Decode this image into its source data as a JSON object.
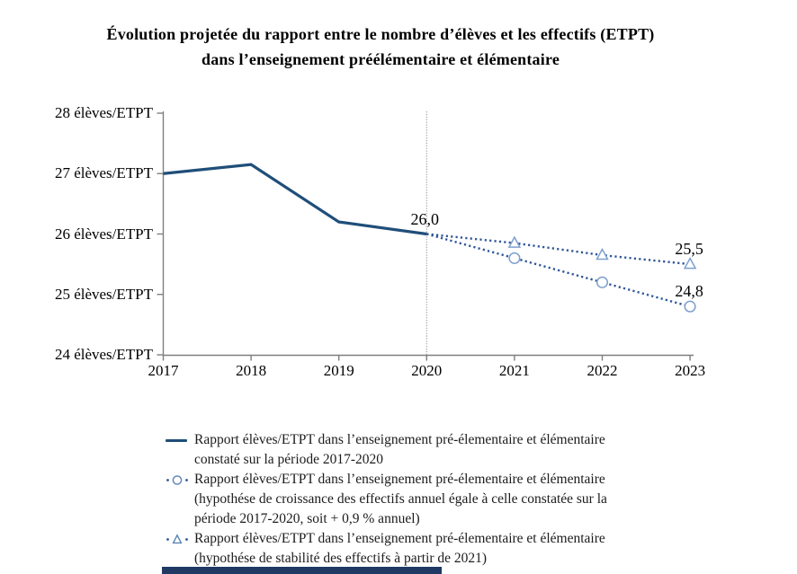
{
  "title": {
    "line1": "Évolution projetée du rapport entre le nombre d’élèves et les effectifs (ETPT)",
    "line2": "dans l’enseignement préélémentaire et élémentaire"
  },
  "chart_data": {
    "type": "line",
    "x_years": [
      2017,
      2018,
      2019,
      2020,
      2021,
      2022,
      2023
    ],
    "ylim": [
      24,
      28
    ],
    "ylabels": [
      "28 élèves/ETPT",
      "27 élèves/ETPT",
      "26 élèves/ETPT",
      "25 élèves/ETPT",
      "24 élèves/ETPT"
    ],
    "xlabels": [
      "2017",
      "2018",
      "2019",
      "2020",
      "2021",
      "2022",
      "2023"
    ],
    "series": [
      {
        "id": "constate",
        "name": "Rapport élèves/ETPT constaté sur la période 2017-2020",
        "style": "solid",
        "color": "#1f4e79",
        "x": [
          2017,
          2018,
          2019,
          2020
        ],
        "values": [
          27.0,
          27.15,
          26.2,
          26.0
        ]
      },
      {
        "id": "croissance",
        "name": "Hypothèse de croissance des effectifs (+ 0,9 % annuel)",
        "style": "dotted",
        "marker": "circle",
        "color": "#2e5597",
        "marker_color": "#7da0cd",
        "x": [
          2020,
          2021,
          2022,
          2023
        ],
        "values": [
          26.0,
          25.6,
          25.2,
          24.8
        ]
      },
      {
        "id": "stabilite",
        "name": "Hypothèse de stabilité des effectifs à partir de 2021",
        "style": "dotted",
        "marker": "triangle",
        "color": "#2e5597",
        "marker_color": "#7da0cd",
        "x": [
          2020,
          2021,
          2022,
          2023
        ],
        "values": [
          26.0,
          25.85,
          25.65,
          25.5
        ]
      }
    ],
    "annotations": [
      {
        "text": "26,0",
        "x": 2020,
        "value": 26.0,
        "dx": -2
      },
      {
        "text": "25,5",
        "x": 2023,
        "value": 25.5,
        "dx": -1
      },
      {
        "text": "24,8",
        "x": 2023,
        "value": 24.8,
        "dx": -1
      }
    ],
    "divider_year": 2020,
    "colors": {
      "axis": "#7f7f7f",
      "divider": "#999999"
    },
    "grid": false,
    "legend_position": "bottom"
  },
  "legend": {
    "items": [
      {
        "marker": "solid-line",
        "lines": [
          "Rapport élèves/ETPT dans l’enseignement pré-élementaire et élémentaire",
          "constaté sur la période 2017-2020"
        ]
      },
      {
        "marker": "dotted-circle",
        "lines": [
          "Rapport élèves/ETPT dans l’enseignement pré-élementaire et élémentaire",
          "(hypothése de croissance des effectifs annuel égale à celle constatée sur la",
          "période 2017-2020, soit + 0,9 % annuel)"
        ]
      },
      {
        "marker": "dotted-triangle",
        "lines": [
          "Rapport élèves/ETPT dans l’enseignement pré-élementaire et élémentaire",
          "(hypothése de stabilité des effectifs à partir de 2021)"
        ]
      }
    ]
  },
  "decor": {
    "bottom_bar_color": "#1f3864"
  }
}
